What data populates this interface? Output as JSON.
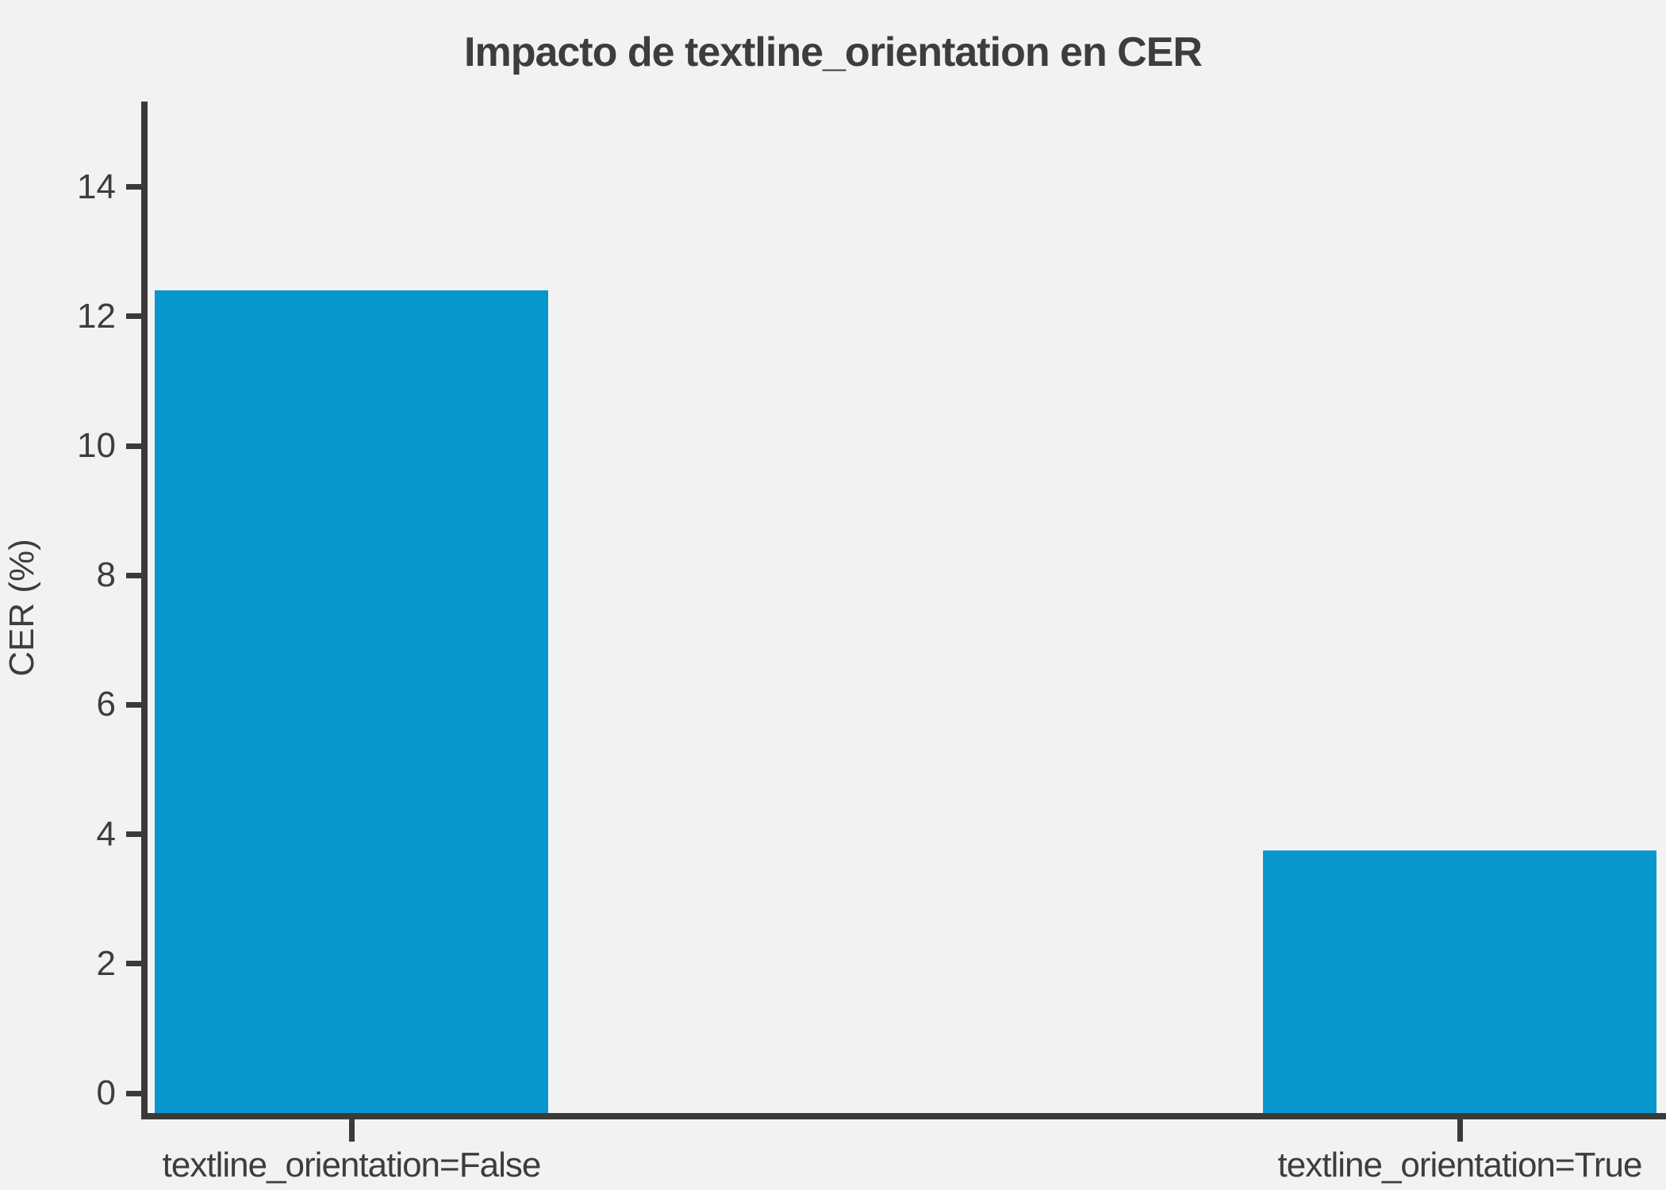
{
  "title": "Impacto de textline_orientation en CER",
  "chart_data": {
    "type": "bar",
    "title": "Impacto de textline_orientation en CER",
    "categories": [
      "textline_orientation=False",
      "textline_orientation=True"
    ],
    "values": [
      12.4,
      3.75
    ],
    "xlabel": "",
    "ylabel": "CER (%)",
    "yticks": [
      0,
      2,
      4,
      6,
      8,
      10,
      12,
      14
    ],
    "ylim": [
      0,
      15.3
    ],
    "grid": false,
    "legend": false,
    "bar_color": "#0897cd",
    "background_color": "#f2f2f2",
    "axis_color": "#3a3a3a",
    "text_color": "#3d3d3d"
  }
}
